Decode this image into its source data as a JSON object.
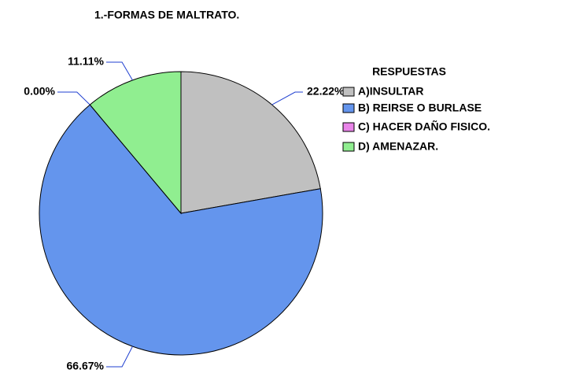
{
  "chart_data": {
    "type": "pie",
    "title": "1.-FORMAS DE MALTRATO.",
    "legend_title": "RESPUESTAS",
    "categories": [
      "A)INSULTAR",
      "B) REIRSE O BURLASE",
      "C) HACER DAÑO FISICO.",
      "D) AMENAZAR."
    ],
    "values": [
      22.22,
      66.67,
      0,
      11.11
    ],
    "value_labels": [
      "22.22%",
      "66.67%",
      "0.00%",
      "11.11%"
    ],
    "colors": [
      "#c0c0c0",
      "#6495ed",
      "#e884e8",
      "#90ee90"
    ],
    "legend": "right"
  }
}
